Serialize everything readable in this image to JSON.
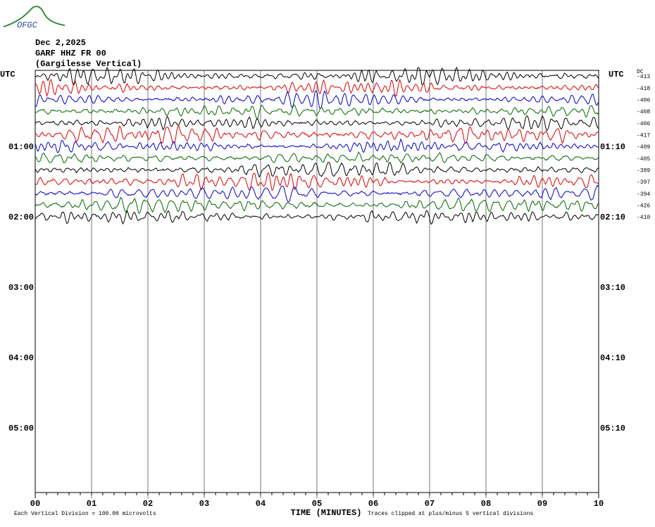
{
  "header": {
    "logo": "OFGC",
    "date": "Dec 2,2025",
    "station": "GARF HHZ FR 00",
    "location": "(Gargilesse Vertical)"
  },
  "left_axis": {
    "title": "UTC",
    "labels": [
      "01:00",
      "02:00",
      "03:00",
      "04:00",
      "05:00"
    ]
  },
  "right_axis": {
    "title": "UTC",
    "labels": [
      "01:10",
      "02:10",
      "03:10",
      "04:10",
      "05:10"
    ]
  },
  "dc": {
    "title": "DC",
    "offsets": [
      "-413",
      "-418",
      "-406",
      "-408",
      "-406",
      "-417",
      "-409",
      "-405",
      "-389",
      "-397",
      "-394",
      "-426",
      "-410"
    ]
  },
  "x_axis": {
    "title": "TIME (MINUTES)",
    "labels": [
      "00",
      "01",
      "02",
      "03",
      "04",
      "05",
      "06",
      "07",
      "08",
      "09",
      "10"
    ]
  },
  "footer": {
    "scale": "Each Vertical Division =  100.00 microvolts",
    "clip": "Traces clipped at plus/minus 5 vertical divisions"
  }
}
